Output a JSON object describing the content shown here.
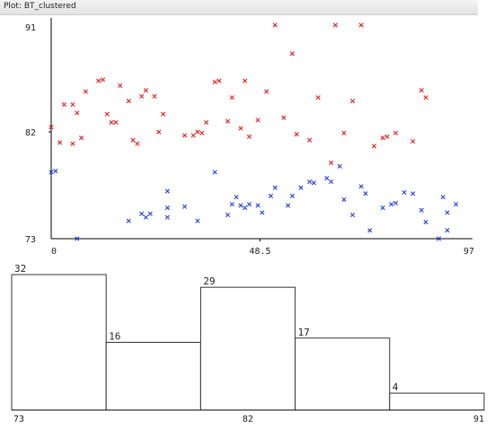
{
  "window": {
    "title": "Plot: BT_clustered"
  },
  "colors": {
    "red": "#e02020",
    "blue": "#2a3fd6",
    "axis": "#000000",
    "bar_stroke": "#333333"
  },
  "chart_data": [
    {
      "type": "scatter",
      "xlabel": "",
      "ylabel": "",
      "xlim": [
        0,
        97
      ],
      "ylim": [
        73,
        91
      ],
      "x_ticks": [
        "0",
        "48.5",
        "97"
      ],
      "y_ticks": [
        "73",
        "82",
        "91"
      ],
      "series": [
        {
          "color": "red",
          "points": [
            [
              0,
              82.4
            ],
            [
              2,
              81.1
            ],
            [
              3,
              84.3
            ],
            [
              5,
              81.0
            ],
            [
              5,
              84.3
            ],
            [
              6,
              83.6
            ],
            [
              7,
              81.5
            ],
            [
              8,
              85.4
            ],
            [
              11,
              86.3
            ],
            [
              12,
              86.4
            ],
            [
              13,
              83.5
            ],
            [
              14,
              82.8
            ],
            [
              15,
              82.8
            ],
            [
              16,
              85.9
            ],
            [
              18,
              84.6
            ],
            [
              19,
              81.3
            ],
            [
              20,
              81.0
            ],
            [
              21,
              85.0
            ],
            [
              22,
              85.5
            ],
            [
              24,
              85.0
            ],
            [
              25,
              82.0
            ],
            [
              26,
              83.5
            ],
            [
              31,
              81.7
            ],
            [
              33,
              81.7
            ],
            [
              34,
              82.0
            ],
            [
              35,
              81.9
            ],
            [
              36,
              82.8
            ],
            [
              38,
              86.2
            ],
            [
              39,
              86.3
            ],
            [
              41,
              82.9
            ],
            [
              42,
              84.9
            ],
            [
              44,
              82.3
            ],
            [
              45,
              86.3
            ],
            [
              46,
              81.6
            ],
            [
              48,
              83.0
            ],
            [
              50,
              85.4
            ],
            [
              52,
              91.0
            ],
            [
              54,
              83.2
            ],
            [
              56,
              88.6
            ],
            [
              57,
              81.8
            ],
            [
              60,
              81.3
            ],
            [
              62,
              84.9
            ],
            [
              65,
              79.4
            ],
            [
              66,
              91.0
            ],
            [
              68,
              81.9
            ],
            [
              70,
              84.6
            ],
            [
              72,
              91.0
            ],
            [
              75,
              80.8
            ],
            [
              77,
              81.5
            ],
            [
              78,
              81.6
            ],
            [
              80,
              81.9
            ],
            [
              84,
              81.2
            ],
            [
              86,
              85.5
            ],
            [
              87,
              84.9
            ]
          ]
        },
        {
          "color": "blue",
          "points": [
            [
              0,
              78.6
            ],
            [
              1,
              78.7
            ],
            [
              6,
              73.0
            ],
            [
              18,
              74.5
            ],
            [
              21,
              75.1
            ],
            [
              22,
              74.8
            ],
            [
              23,
              75.1
            ],
            [
              27,
              77.0
            ],
            [
              27,
              75.6
            ],
            [
              27,
              74.8
            ],
            [
              31,
              75.7
            ],
            [
              34,
              74.5
            ],
            [
              38,
              78.6
            ],
            [
              41,
              75.0
            ],
            [
              42,
              75.9
            ],
            [
              43,
              76.5
            ],
            [
              44,
              75.8
            ],
            [
              45,
              75.6
            ],
            [
              46,
              75.9
            ],
            [
              48,
              75.8
            ],
            [
              49,
              75.2
            ],
            [
              51,
              76.6
            ],
            [
              52,
              77.3
            ],
            [
              55,
              75.8
            ],
            [
              56,
              76.6
            ],
            [
              58,
              77.3
            ],
            [
              60,
              77.8
            ],
            [
              61,
              77.7
            ],
            [
              64,
              78.1
            ],
            [
              65,
              77.8
            ],
            [
              67,
              79.1
            ],
            [
              68,
              76.3
            ],
            [
              70,
              75.0
            ],
            [
              72,
              77.4
            ],
            [
              73,
              76.8
            ],
            [
              74,
              73.7
            ],
            [
              77,
              75.6
            ],
            [
              79,
              75.9
            ],
            [
              80,
              76.0
            ],
            [
              82,
              76.9
            ],
            [
              84,
              76.8
            ],
            [
              86,
              75.4
            ],
            [
              87,
              74.4
            ],
            [
              90,
              73.0
            ],
            [
              91,
              76.5
            ],
            [
              92,
              73.7
            ],
            [
              92,
              75.2
            ],
            [
              94,
              75.9
            ]
          ]
        }
      ]
    },
    {
      "type": "bar",
      "categories": [
        "73-76.6",
        "76.6-80.2",
        "80.2-83.8",
        "83.8-87.4",
        "87.4-91"
      ],
      "values": [
        32,
        16,
        29,
        17,
        4
      ],
      "x_ticks": [
        "73",
        "82",
        "91"
      ],
      "xlim": [
        73,
        91
      ]
    }
  ]
}
